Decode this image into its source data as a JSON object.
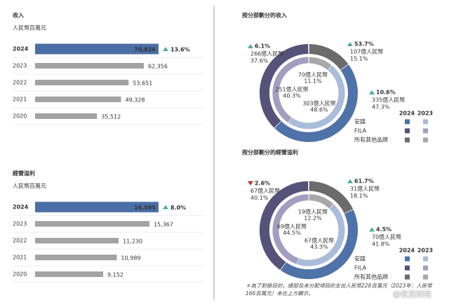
{
  "chart_data": [
    {
      "type": "bar",
      "title": "收入",
      "subtitle": "人民幣百萬元",
      "categories": [
        "2024",
        "2023",
        "2022",
        "2021",
        "2020"
      ],
      "values": [
        70826,
        62356,
        53651,
        49328,
        35512
      ],
      "value_labels": [
        "70,826",
        "62,356",
        "53,651",
        "49,328",
        "35,512"
      ],
      "highlight_color": "#4a6ea5",
      "color": "#a3a3a3",
      "growth": {
        "value": 13.6,
        "label": "13.6%",
        "direction": "up"
      }
    },
    {
      "type": "bar",
      "title": "經營溢利",
      "subtitle": "人民幣百萬元",
      "categories": [
        "2024",
        "2023",
        "2022",
        "2021",
        "2020"
      ],
      "values": [
        16595,
        15367,
        11230,
        10989,
        9152
      ],
      "value_labels": [
        "16,595",
        "15,367",
        "11,230",
        "10,989",
        "9,152"
      ],
      "highlight_color": "#4a6ea5",
      "color": "#a3a3a3",
      "growth": {
        "value": 8.0,
        "label": "8.0%",
        "direction": "up"
      }
    },
    {
      "type": "donut",
      "title": "按分部劃分的收入",
      "categories": [
        "安踏",
        "FILA",
        "所有其他品牌"
      ],
      "series": [
        {
          "name": "2024",
          "colors": [
            "#4f72a8",
            "#57527a",
            "#6b6b6b"
          ],
          "values": [
            47.3,
            37.6,
            15.1
          ],
          "value_labels": [
            "47.3%",
            "37.6%",
            "15.1%"
          ],
          "amount_labels": [
            "335億人民幣",
            "266億人民幣",
            "107億人民幣"
          ]
        },
        {
          "name": "2023",
          "colors": [
            "#a9bcd9",
            "#a39ec0",
            "#a8a8a8"
          ],
          "values": [
            48.6,
            40.3,
            11.1
          ],
          "value_labels": [
            "48.6%",
            "40.3%",
            "11.1%"
          ],
          "amount_labels": [
            "303億人民幣",
            "251億人民幣",
            "70億人民幣"
          ]
        }
      ],
      "growth": [
        {
          "value": 10.6,
          "label": "10.6%",
          "direction": "up"
        },
        {
          "value": 6.1,
          "label": "6.1%",
          "direction": "up"
        },
        {
          "value": 53.7,
          "label": "53.7%",
          "direction": "up"
        }
      ]
    },
    {
      "type": "donut",
      "title": "按分部劃分的經營溢利",
      "categories": [
        "安踏",
        "FILA",
        "所有其他品牌"
      ],
      "series": [
        {
          "name": "2024",
          "colors": [
            "#4f72a8",
            "#57527a",
            "#6b6b6b"
          ],
          "values": [
            41.8,
            40.1,
            18.1
          ],
          "value_labels": [
            "41.8%",
            "40.1%",
            "18.1%"
          ],
          "amount_labels": [
            "70億人民幣",
            "67億人民幣",
            "31億人民幣"
          ]
        },
        {
          "name": "2023",
          "colors": [
            "#a9bcd9",
            "#a39ec0",
            "#a8a8a8"
          ],
          "values": [
            43.3,
            44.5,
            12.2
          ],
          "value_labels": [
            "43.3%",
            "44.5%",
            "12.2%"
          ],
          "amount_labels": [
            "67億人民幣",
            "69億人民幣",
            "19億人民幣"
          ]
        }
      ],
      "growth": [
        {
          "value": 4.5,
          "label": "4.5%",
          "direction": "up"
        },
        {
          "value": 2.6,
          "label": "2.6%",
          "direction": "down"
        },
        {
          "value": 61.7,
          "label": "61.7%",
          "direction": "up"
        }
      ]
    }
  ],
  "footnote": "＊為了對賬目的，總部及未分配項目的支出人民幣228百萬元（2023年：人民幣166百萬元）未在上方顯示。",
  "watermark": "@优见财经"
}
